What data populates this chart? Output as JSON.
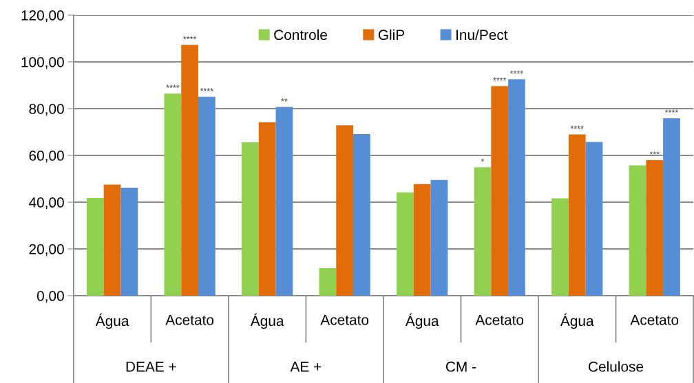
{
  "chart_data": {
    "type": "bar",
    "categories": [
      "Água",
      "Acetato",
      "Água",
      "Acetato",
      "Água",
      "Acetato",
      "Água",
      "Acetato"
    ],
    "annotations": [
      "DEAE +",
      "AE +",
      "CM -",
      "Celulose"
    ],
    "series": [
      {
        "name": "Controle",
        "color": "#92d050",
        "values": [
          41.8,
          86.5,
          65.6,
          11.8,
          44.2,
          54.9,
          41.6,
          55.7
        ],
        "value_labels": [
          null,
          "****",
          null,
          null,
          null,
          "*",
          null,
          null
        ]
      },
      {
        "name": "GliP",
        "color": "#e36c0a",
        "values": [
          47.5,
          107.3,
          74.2,
          72.9,
          47.7,
          89.6,
          69.0,
          58.0
        ],
        "value_labels": [
          null,
          "****",
          null,
          null,
          null,
          "****",
          "****",
          "***"
        ]
      },
      {
        "name": "Inu/Pect",
        "color": "#558ed5",
        "values": [
          46.2,
          85.1,
          80.7,
          69.1,
          49.5,
          92.6,
          65.7,
          75.9
        ],
        "value_labels": [
          null,
          "****",
          "**",
          null,
          null,
          "****",
          null,
          "****"
        ]
      }
    ],
    "ylim": [
      0,
      120
    ],
    "yticks": [
      {
        "value": 0,
        "label": "0,00"
      },
      {
        "value": 20,
        "label": "20,00"
      },
      {
        "value": 40,
        "label": "40,00"
      },
      {
        "value": 60,
        "label": "60,00"
      },
      {
        "value": 80,
        "label": "80,00"
      },
      {
        "value": 100,
        "label": "100,00"
      },
      {
        "value": 120,
        "label": "120,00"
      }
    ],
    "grid": "y",
    "legend": "top"
  }
}
